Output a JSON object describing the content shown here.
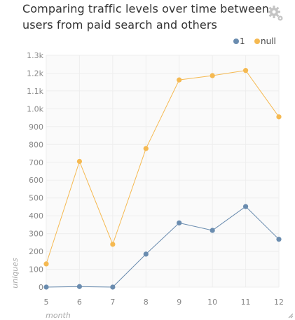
{
  "widget": {
    "title": "Comparing traffic levels over time between users from paid search and others",
    "settings_icon": "gear-icon",
    "resize_icon": "resize-handle-icon"
  },
  "chart_data": {
    "type": "line",
    "title": "Comparing traffic levels over time between users from paid search and others",
    "xlabel": "month",
    "ylabel": "uniques",
    "x": [
      5,
      6,
      7,
      8,
      9,
      10,
      11,
      12
    ],
    "y_ticks": [
      "0",
      "100",
      "200",
      "300",
      "400",
      "500",
      "600",
      "700",
      "800",
      "900",
      "1.0k",
      "1.1k",
      "1.2k",
      "1.3k"
    ],
    "ylim": [
      0,
      1300
    ],
    "grid": true,
    "legend_position": "top-right",
    "series": [
      {
        "name": "1",
        "color": "#6a8caf",
        "values": [
          0,
          3,
          0,
          185,
          360,
          318,
          452,
          268
        ]
      },
      {
        "name": "null",
        "color": "#f5b951",
        "values": [
          130,
          705,
          240,
          777,
          1162,
          1186,
          1215,
          955
        ]
      }
    ]
  }
}
